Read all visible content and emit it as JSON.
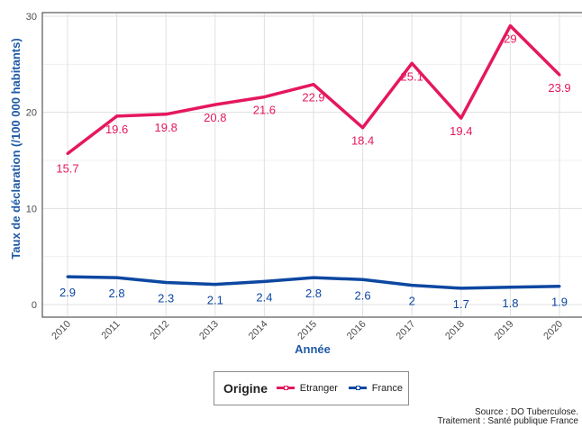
{
  "chart_data": {
    "type": "line",
    "x": [
      "2010",
      "2011",
      "2012",
      "2013",
      "2014",
      "2015",
      "2016",
      "2017",
      "2018",
      "2019",
      "2020"
    ],
    "series": [
      {
        "name": "Etranger",
        "color": "#e5175f",
        "values": [
          15.7,
          19.6,
          19.8,
          20.8,
          21.6,
          22.9,
          18.4,
          25.1,
          19.4,
          29,
          23.9
        ],
        "labels": [
          "15.7",
          "19.6",
          "19.8",
          "20.8",
          "21.6",
          "22.9",
          "18.4",
          "25.1",
          "19.4",
          "29",
          "23.9"
        ]
      },
      {
        "name": "France",
        "color": "#0d47a1",
        "values": [
          2.9,
          2.8,
          2.3,
          2.1,
          2.4,
          2.8,
          2.6,
          2.0,
          1.7,
          1.8,
          1.9
        ],
        "labels": [
          "2.9",
          "2.8",
          "2.3",
          "2.1",
          "2.4",
          "2.8",
          "2.6",
          "2",
          "1.7",
          "1.8",
          "1.9"
        ]
      }
    ],
    "ylim": [
      0,
      30
    ],
    "yticks": [
      "0",
      "10",
      "20",
      "30"
    ],
    "xlabel": "Année",
    "ylabel": "Taux de déclaration (/100 000 habitants)",
    "grid": true,
    "legend_title": "Origine",
    "legend_position": "bottom"
  },
  "source": {
    "line1": "Source : DO Tuberculose.",
    "line2": "Traitement : Santé publique France"
  }
}
